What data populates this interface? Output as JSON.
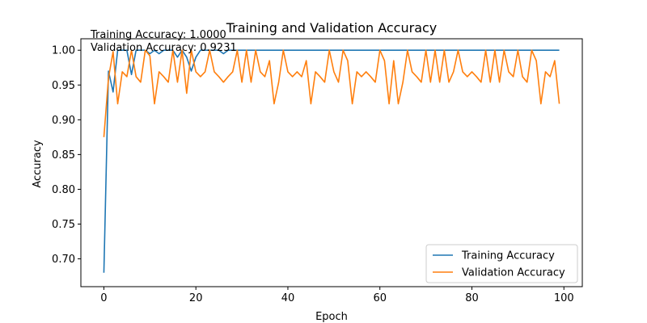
{
  "chart_data": {
    "type": "line",
    "title": "Training and Validation Accuracy",
    "xlabel": "Epoch",
    "ylabel": "Accuracy",
    "xlim": [
      -5,
      104
    ],
    "ylim": [
      0.66,
      1.0165
    ],
    "xticks": [
      "0",
      "20",
      "40",
      "60",
      "80",
      "100"
    ],
    "yticks": [
      "0.70",
      "0.75",
      "0.80",
      "0.85",
      "0.90",
      "0.95",
      "1.00"
    ],
    "grid": false,
    "legend_position": "lower right",
    "annotations": [
      "Training Accuracy: 1.0000",
      "Validation Accuracy: 0.9231"
    ],
    "x": [
      0,
      1,
      2,
      3,
      4,
      5,
      6,
      7,
      8,
      9,
      10,
      11,
      12,
      13,
      14,
      15,
      16,
      17,
      18,
      19,
      20,
      21,
      22,
      23,
      24,
      25,
      26,
      27,
      28,
      29,
      30,
      31,
      32,
      33,
      34,
      35,
      36,
      37,
      38,
      39,
      40,
      41,
      42,
      43,
      44,
      45,
      46,
      47,
      48,
      49,
      50,
      51,
      52,
      53,
      54,
      55,
      56,
      57,
      58,
      59,
      60,
      61,
      62,
      63,
      64,
      65,
      66,
      67,
      68,
      69,
      70,
      71,
      72,
      73,
      74,
      75,
      76,
      77,
      78,
      79,
      80,
      81,
      82,
      83,
      84,
      85,
      86,
      87,
      88,
      89,
      90,
      91,
      92,
      93,
      94,
      95,
      96,
      97,
      98,
      99
    ],
    "series": [
      {
        "name": "Training Accuracy",
        "color": "#1f77b4",
        "values": [
          0.68,
          0.97,
          0.94,
          1.0,
          1.0,
          1.0,
          0.965,
          1.0,
          1.0,
          1.0,
          0.995,
          1.0,
          0.995,
          1.0,
          1.0,
          1.0,
          0.99,
          1.0,
          0.99,
          0.97,
          0.99,
          1.0,
          1.0,
          1.0,
          1.0,
          1.0,
          0.995,
          1.0,
          1.0,
          1.0,
          1.0,
          1.0,
          1.0,
          1.0,
          1.0,
          1.0,
          1.0,
          1.0,
          1.0,
          1.0,
          1.0,
          1.0,
          1.0,
          1.0,
          1.0,
          1.0,
          1.0,
          1.0,
          1.0,
          1.0,
          1.0,
          1.0,
          1.0,
          1.0,
          1.0,
          1.0,
          1.0,
          1.0,
          1.0,
          1.0,
          1.0,
          1.0,
          1.0,
          1.0,
          1.0,
          1.0,
          1.0,
          1.0,
          1.0,
          1.0,
          1.0,
          1.0,
          1.0,
          1.0,
          1.0,
          1.0,
          1.0,
          1.0,
          1.0,
          1.0,
          1.0,
          1.0,
          1.0,
          1.0,
          1.0,
          1.0,
          1.0,
          1.0,
          1.0,
          1.0,
          1.0,
          1.0,
          1.0,
          1.0,
          1.0,
          1.0,
          1.0,
          1.0,
          1.0,
          1.0
        ]
      },
      {
        "name": "Validation Accuracy",
        "color": "#ff7f0e",
        "values": [
          0.875,
          0.96,
          0.998,
          0.923,
          0.969,
          0.962,
          1.0,
          0.962,
          0.954,
          1.0,
          0.992,
          0.923,
          0.969,
          0.962,
          0.954,
          1.0,
          0.954,
          1.0,
          0.938,
          1.0,
          0.969,
          0.962,
          0.969,
          1.0,
          0.969,
          0.962,
          0.954,
          0.962,
          0.969,
          1.0,
          0.954,
          1.0,
          0.954,
          1.0,
          0.969,
          0.962,
          0.985,
          0.923,
          0.954,
          1.0,
          0.969,
          0.962,
          0.969,
          0.962,
          0.985,
          0.923,
          0.969,
          0.962,
          0.954,
          1.0,
          0.969,
          0.954,
          1.0,
          0.985,
          0.923,
          0.969,
          0.962,
          0.969,
          0.962,
          0.954,
          1.0,
          0.985,
          0.923,
          0.985,
          0.923,
          0.954,
          1.0,
          0.969,
          0.962,
          0.954,
          1.0,
          0.954,
          1.0,
          0.954,
          1.0,
          0.954,
          0.969,
          1.0,
          0.969,
          0.962,
          0.969,
          0.962,
          0.954,
          1.0,
          0.954,
          1.0,
          0.954,
          1.0,
          0.969,
          0.962,
          1.0,
          0.962,
          0.954,
          1.0,
          0.985,
          0.923,
          0.969,
          0.962,
          0.985,
          0.923
        ]
      }
    ]
  }
}
